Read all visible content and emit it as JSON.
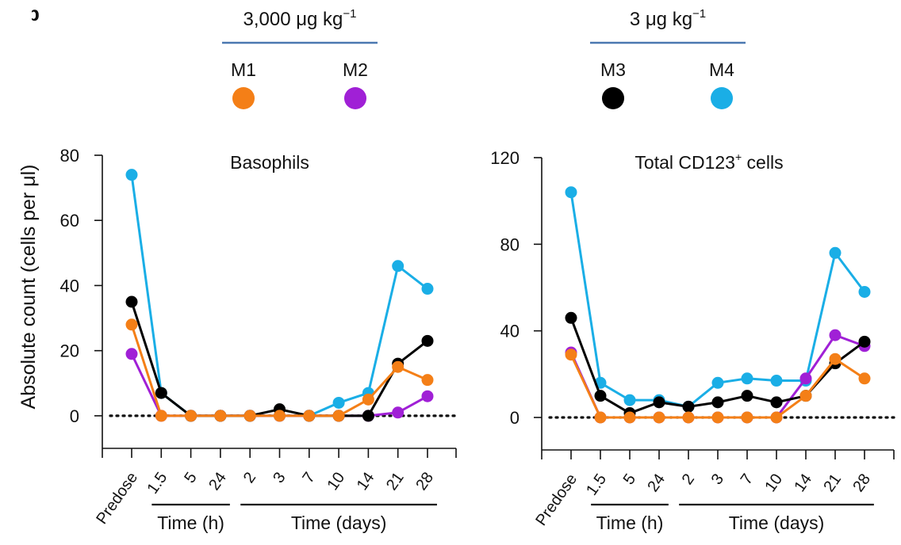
{
  "panel_label": "b",
  "dose_groups": [
    {
      "dose_value": "3,000 μg kg",
      "dose_exp": "−1",
      "color": "#4a78b0"
    },
    {
      "dose_value": "3 μg kg",
      "dose_exp": "−1",
      "color": "#4a78b0"
    }
  ],
  "legend": [
    {
      "name": "M1",
      "color": "#f47f17"
    },
    {
      "name": "M2",
      "color": "#a020d6"
    },
    {
      "name": "M3",
      "color": "#000000"
    },
    {
      "name": "M4",
      "color": "#1aaee6"
    }
  ],
  "chart_data": [
    {
      "type": "line",
      "title": "Basophils",
      "title_sup": "",
      "ylabel": "Absolute count (cells per μl)",
      "ylim": [
        -10,
        80
      ],
      "yticks": [
        0,
        20,
        40,
        60,
        80
      ],
      "categories": [
        "Predose",
        "1.5",
        "5",
        "24",
        "2",
        "3",
        "7",
        "10",
        "14",
        "21",
        "28"
      ],
      "xgroups": [
        {
          "label": "Time (h)",
          "from": 1,
          "to": 3
        },
        {
          "label": "Time (days)",
          "from": 4,
          "to": 10
        }
      ],
      "baseline": 0,
      "series": [
        {
          "name": "M4",
          "color": "#1aaee6",
          "values": [
            74,
            7,
            0,
            0,
            0,
            0,
            0,
            4,
            7,
            46,
            39
          ]
        },
        {
          "name": "M2",
          "color": "#a020d6",
          "values": [
            19,
            0,
            0,
            0,
            0,
            0,
            0,
            0,
            0,
            1,
            6
          ]
        },
        {
          "name": "M3",
          "color": "#000000",
          "values": [
            35,
            7,
            0,
            0,
            0,
            2,
            0,
            0,
            0,
            16,
            23
          ]
        },
        {
          "name": "M1",
          "color": "#f47f17",
          "values": [
            28,
            0,
            0,
            0,
            0,
            0,
            0,
            0,
            5,
            15,
            11
          ]
        }
      ]
    },
    {
      "type": "line",
      "title": "Total CD123",
      "title_sup": "+",
      "title_suffix": " cells",
      "ylabel": "",
      "ylim": [
        -15,
        120
      ],
      "yticks": [
        0,
        40,
        80,
        120
      ],
      "categories": [
        "Predose",
        "1.5",
        "5",
        "24",
        "2",
        "3",
        "7",
        "10",
        "14",
        "21",
        "28"
      ],
      "xgroups": [
        {
          "label": "Time (h)",
          "from": 1,
          "to": 3
        },
        {
          "label": "Time (days)",
          "from": 4,
          "to": 10
        }
      ],
      "baseline": 0,
      "series": [
        {
          "name": "M4",
          "color": "#1aaee6",
          "values": [
            104,
            16,
            8,
            8,
            5,
            16,
            18,
            17,
            17,
            76,
            58
          ]
        },
        {
          "name": "M2",
          "color": "#a020d6",
          "values": [
            30,
            0,
            0,
            0,
            0,
            0,
            0,
            0,
            18,
            38,
            33
          ]
        },
        {
          "name": "M3",
          "color": "#000000",
          "values": [
            46,
            10,
            2,
            7,
            5,
            7,
            10,
            7,
            10,
            25,
            35
          ]
        },
        {
          "name": "M1",
          "color": "#f47f17",
          "values": [
            29,
            0,
            0,
            0,
            0,
            0,
            0,
            0,
            10,
            27,
            18
          ]
        }
      ]
    }
  ]
}
